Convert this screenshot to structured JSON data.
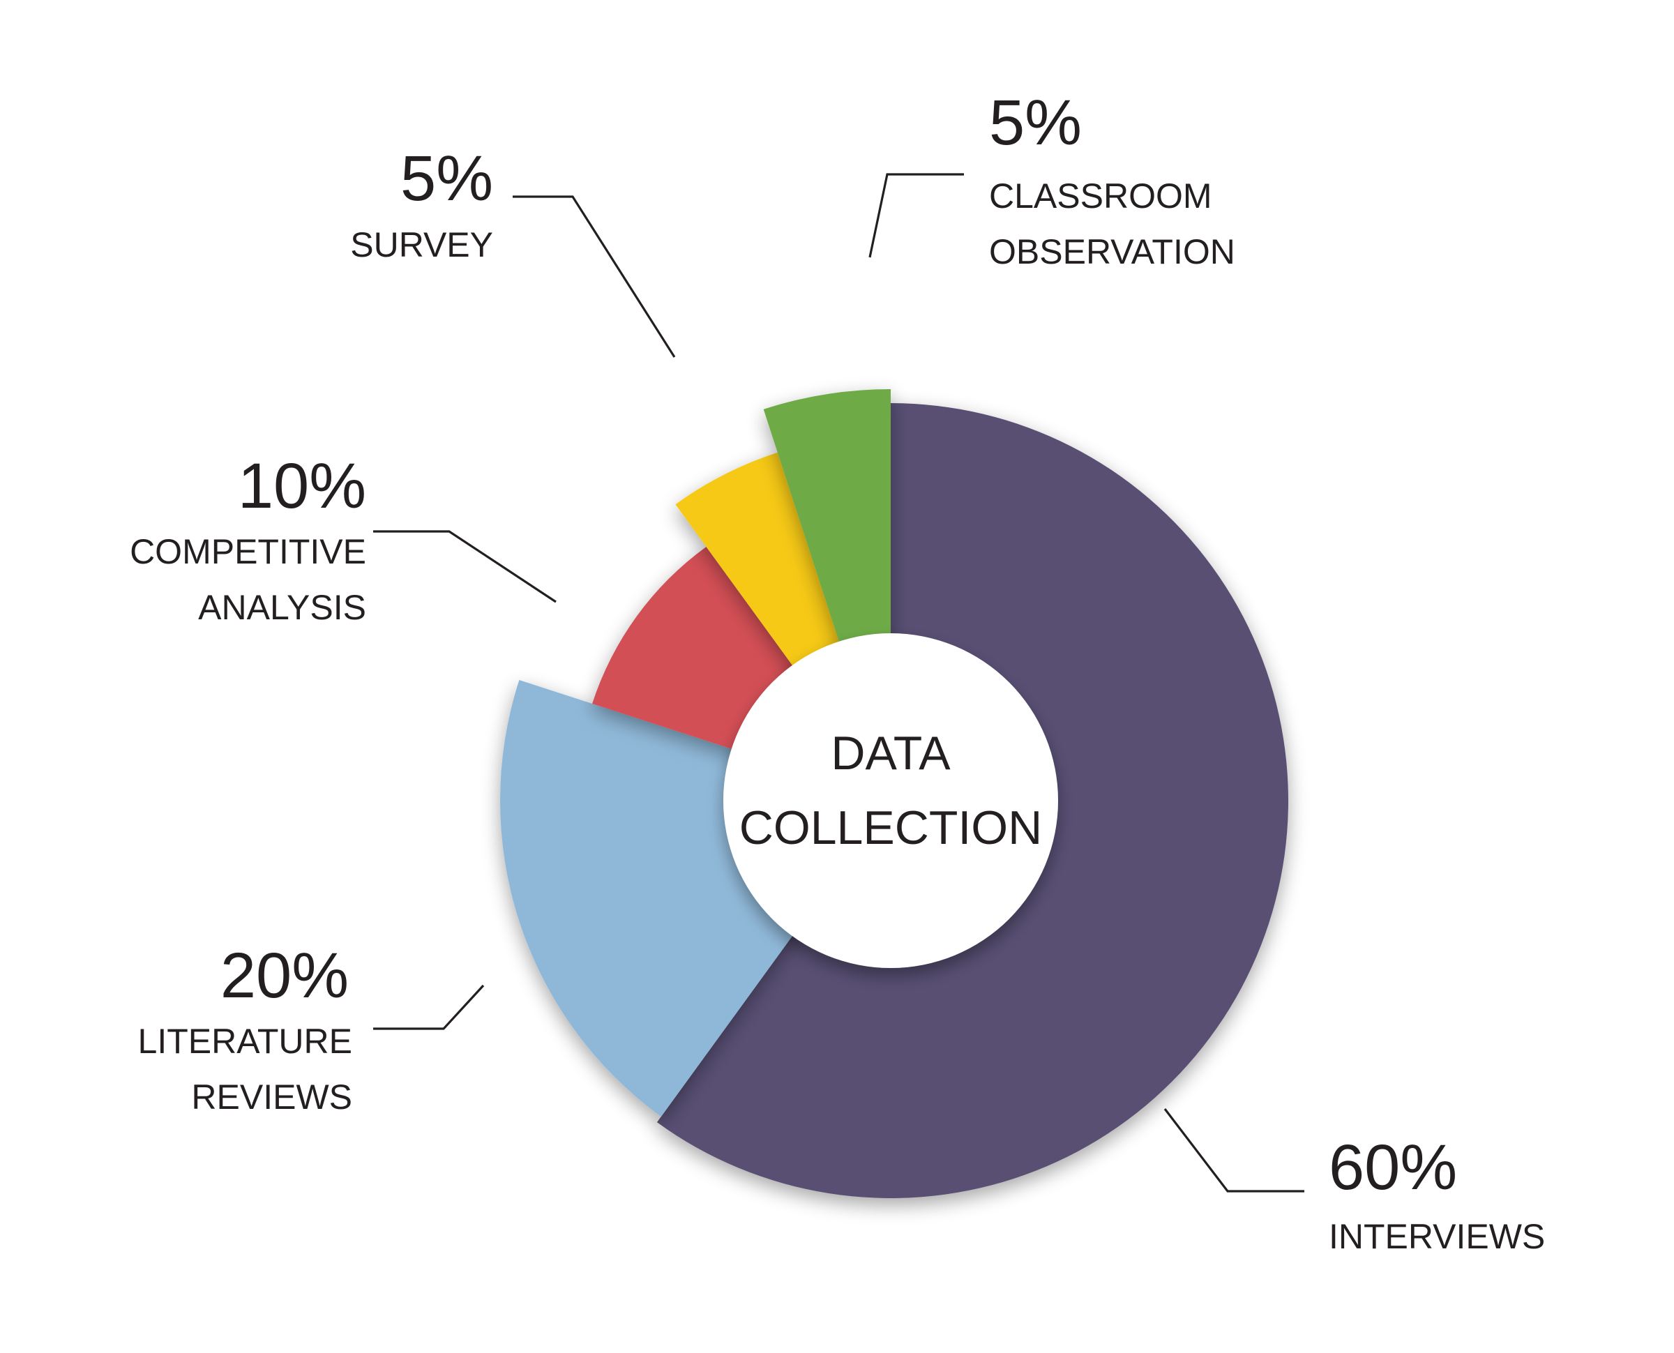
{
  "chart_data": {
    "type": "pie",
    "center_label": [
      "DATA",
      "COLLECTION"
    ],
    "slices": [
      {
        "label": "INTERVIEWS",
        "label_lines": [
          "INTERVIEWS"
        ],
        "value": 60,
        "value_text": "60%",
        "color": "#585073"
      },
      {
        "label": "LITERATURE REVIEWS",
        "label_lines": [
          "LITERATURE",
          "REVIEWS"
        ],
        "value": 20,
        "value_text": "20%",
        "color": "#8fb8d8"
      },
      {
        "label": "COMPETITIVE ANALYSIS",
        "label_lines": [
          "COMPETITIVE",
          "ANALYSIS"
        ],
        "value": 10,
        "value_text": "10%",
        "color": "#d25054"
      },
      {
        "label": "SURVEY",
        "label_lines": [
          "SURVEY"
        ],
        "value": 5,
        "value_text": "5%",
        "color": "#f6c918"
      },
      {
        "label": "CLASSROOM OBSERVATION",
        "label_lines": [
          "CLASSROOM",
          "OBSERVATION"
        ],
        "value": 5,
        "value_text": "5%",
        "color": "#6eab46"
      }
    ]
  }
}
